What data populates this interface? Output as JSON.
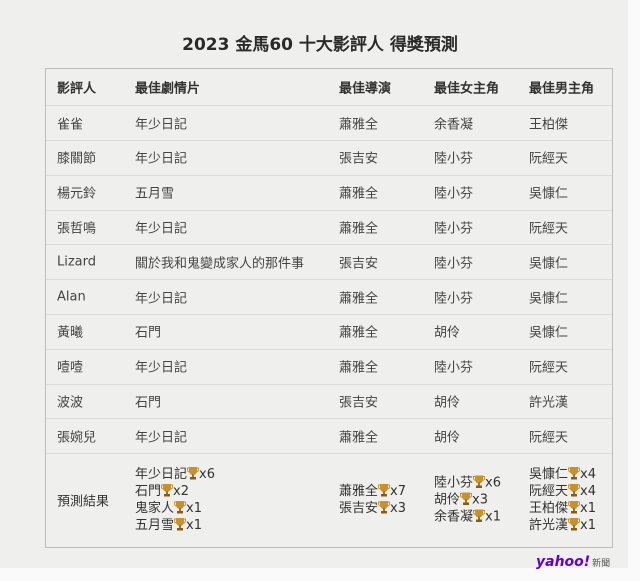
{
  "title": "2023 金馬60 十大影評人 得獎預測",
  "headers": [
    "影評人",
    "最佳劇情片",
    "最佳導演",
    "最佳女主角",
    "最佳男主角"
  ],
  "rows": [
    [
      "雀雀",
      "年少日記",
      "蕭雅全",
      "余香凝",
      "王柏傑"
    ],
    [
      "膝關節",
      "年少日記",
      "張吉安",
      "陸小芬",
      "阮經天"
    ],
    [
      "楊元鈴",
      "五月雪",
      "蕭雅全",
      "陸小芬",
      "吳慷仁"
    ],
    [
      "張哲鳴",
      "年少日記",
      "蕭雅全",
      "陸小芬",
      "阮經天"
    ],
    [
      "Lizard",
      "關於我和鬼變成家人的那件事",
      "張吉安",
      "陸小芬",
      "吳慷仁"
    ],
    [
      "Alan",
      "年少日記",
      "蕭雅全",
      "陸小芬",
      "吳慷仁"
    ],
    [
      "黃曦",
      "石門",
      "蕭雅全",
      "胡伶",
      "吳慷仁"
    ],
    [
      "噎噎",
      "年少日記",
      "蕭雅全",
      "陸小芬",
      "阮經天"
    ],
    [
      "波波",
      "石門",
      "張吉安",
      "胡伶",
      "許光漢"
    ],
    [
      "張婉兒",
      "年少日記",
      "蕭雅全",
      "胡伶",
      "阮經天"
    ]
  ],
  "results": {
    "label": "預測結果",
    "columns": [
      [
        {
          "name": "年少日記",
          "count": "x6"
        },
        {
          "name": "石門",
          "count": "x2"
        },
        {
          "name": "鬼家人",
          "count": "x1"
        },
        {
          "name": "五月雪",
          "count": "x1"
        }
      ],
      [
        {
          "name": "蕭雅全",
          "count": "x7"
        },
        {
          "name": "張吉安",
          "count": "x3"
        }
      ],
      [
        {
          "name": "陸小芬",
          "count": "x6"
        },
        {
          "name": "胡伶",
          "count": "x3"
        },
        {
          "name": "余香凝",
          "count": "x1"
        }
      ],
      [
        {
          "name": "吳慷仁",
          "count": "x4"
        },
        {
          "name": "阮經天",
          "count": "x4"
        },
        {
          "name": "王柏傑",
          "count": "x1"
        },
        {
          "name": "許光漢",
          "count": "x1"
        }
      ]
    ]
  },
  "icons": {
    "trophy": "trophy-icon",
    "trophy_color": "#c8922a"
  },
  "logo": {
    "brand": "yahoo!",
    "suffix": "新聞",
    "color": "#6001d2"
  }
}
